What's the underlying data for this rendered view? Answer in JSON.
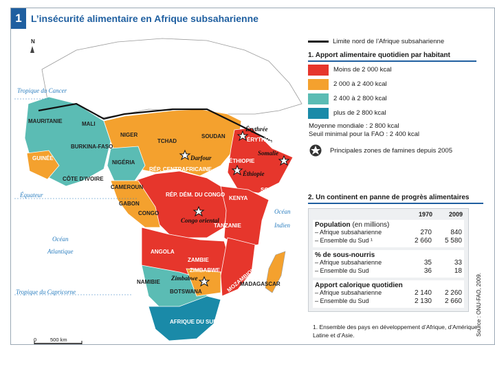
{
  "title": {
    "number": "1",
    "text": "L’insécurité alimentaire en Afrique subsaharienne"
  },
  "colors": {
    "lt2000": "#e6362c",
    "c2000_2400": "#f4a12e",
    "c2400_2800": "#5bbcb4",
    "gt2800": "#1a8aa8",
    "other": "#ffffff",
    "title": "#1f5fa0",
    "ocean_label": "#2c7fc0"
  },
  "map": {
    "north_arrow": "N",
    "lines": {
      "tropique_cancer": "Tropique du Cancer",
      "equateur": "Équateur",
      "tropique_capricorne": "Tropique du Capricorne"
    },
    "oceans": {
      "atlantique_1": "Océan",
      "atlantique_2": "Atlantique",
      "indien_1": "Océan",
      "indien_2": "Indien"
    },
    "countries": {
      "mauritanie": "MAURITANIE",
      "mali": "MALI",
      "niger": "NIGER",
      "tchad": "TCHAD",
      "soudan": "SOUDAN",
      "erythree": "ÉRYTHRÉE",
      "ethiopie": "ÉTHIOPIE",
      "somalie": "SOMALIE",
      "burkina": "BURKINA-FASO",
      "guinee": "GUINÉE",
      "cote_ivoire": "CÔTE D’IVOIRE",
      "nigeria": "NIGÉRIA",
      "cameroun": "CAMEROUN",
      "rca": "RÉP. CENTRAFRICAINE",
      "gabon": "GABON",
      "congo": "CONGO",
      "rdc": "RÉP. DÉM. DU CONGO",
      "kenya": "KENYA",
      "tanzanie": "TANZANIE",
      "angola": "ANGOLA",
      "zambie": "ZAMBIE",
      "zimbabwe": "ZIMBABWE",
      "mozambique": "MOZAMBIQUE",
      "namibie": "NAMIBIE",
      "botswana": "BOTSWANA",
      "afrique_sud": "AFRIQUE DU SUD",
      "madagascar": "MADAGASCAR"
    },
    "famines": {
      "erythree": "Érythrée",
      "darfour": "Darfour",
      "somalie": "Somalie",
      "ethiopie": "Éthiopie",
      "congo_oriental": "Congo oriental",
      "zimbabwe": "Zimbabwe"
    },
    "scale": {
      "zero": "0",
      "km": "500 km"
    }
  },
  "legend": {
    "limit_line": "Limite nord de l’Afrique subsaharienne",
    "section1_title": "1. Apport alimentaire quotidien par habitant",
    "items": [
      {
        "label": "Moins de 2 000 kcal",
        "color": "#e6362c"
      },
      {
        "label": "2 000 à 2  400 kcal",
        "color": "#f4a12e"
      },
      {
        "label": "2 400 à 2 800 kcal",
        "color": "#5bbcb4"
      },
      {
        "label": "plus de 2 800 kcal",
        "color": "#1a8aa8"
      }
    ],
    "moyenne": "Moyenne mondiale : 2 800 kcal",
    "seuil": "Seuil minimal pour la FAO : 2 400 kcal",
    "famine_label": "Principales zones de famines depuis 2005"
  },
  "table": {
    "section2_title": "2. Un continent en panne de progrès alimentaires",
    "years": [
      "1970",
      "2009"
    ],
    "sections": [
      {
        "head": "Population",
        "sub": " (en millions)",
        "rows": [
          {
            "label": "– Afrique subsaharienne",
            "v1": "270",
            "v2": "840"
          },
          {
            "label": "– Ensemble du Sud ¹",
            "v1": "2 660",
            "v2": "5 580"
          }
        ]
      },
      {
        "head": "% de sous-nourris",
        "sub": "",
        "rows": [
          {
            "label": "– Afrique subsaharienne",
            "v1": "35",
            "v2": "33"
          },
          {
            "label": "– Ensemble du Sud",
            "v1": "36",
            "v2": "18"
          }
        ]
      },
      {
        "head": "Apport calorique quotidien",
        "sub": "",
        "rows": [
          {
            "label": "– Afrique subsaharienne",
            "v1": "2 140",
            "v2": "2 260"
          },
          {
            "label": "– Ensemble du Sud",
            "v1": "2 130",
            "v2": "2 660"
          }
        ]
      }
    ],
    "footnote": "1. Ensemble des pays en développement d’Afrique, d’Amérique Latine et d’Asie.",
    "source": "Source : ONU-FAO, 2009."
  }
}
